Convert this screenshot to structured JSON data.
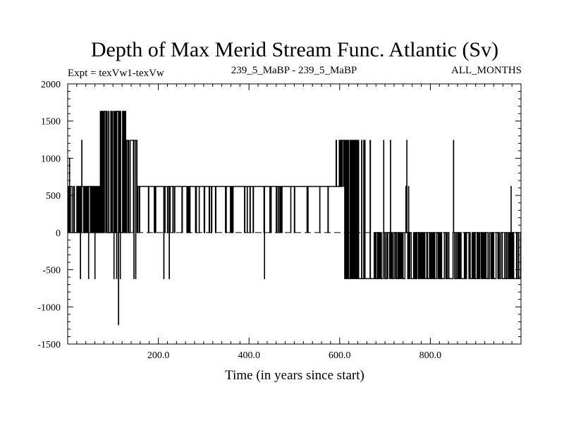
{
  "chart_data": {
    "type": "line",
    "title": "Depth of Max Merid Stream Func. Atlantic (Sv)",
    "subtitle_left": "Expt = texVw1-texVw",
    "subtitle_center": "239_5_MaBP - 239_5_MaBP",
    "subtitle_right": "ALL_MONTHS",
    "xlabel": "Time (in years since start)",
    "ylabel": "",
    "xlim": [
      0,
      1000
    ],
    "ylim": [
      -1500,
      2000
    ],
    "x_ticks": [
      200,
      400,
      600,
      800
    ],
    "x_tick_labels": [
      "200.0",
      "400.0",
      "600.0",
      "800.0"
    ],
    "y_ticks": [
      -1500,
      -1000,
      -500,
      0,
      500,
      1000,
      1500,
      2000
    ],
    "y_tick_labels": [
      "-1500",
      "-1000",
      "-500",
      "0",
      "500",
      "1000",
      "1500",
      "2000"
    ],
    "zero_line": "dashed",
    "levels": {
      "base": 620,
      "high": 1240,
      "peak": 1630,
      "low": -620,
      "zero": 0,
      "min": -1240
    },
    "segments": [
      {
        "x_start": 0,
        "x_end": 40,
        "level": 620,
        "density": 0.5,
        "alt_level": 0,
        "spikes": [
          [
            4,
            1000
          ],
          [
            28,
            -620
          ],
          [
            31,
            1240
          ]
        ]
      },
      {
        "x_start": 40,
        "x_end": 70,
        "level": 620,
        "density": 0.4,
        "alt_level": 0,
        "spikes": [
          [
            46,
            -620
          ],
          [
            60,
            -620
          ],
          [
            70,
            1240
          ]
        ]
      },
      {
        "x_start": 70,
        "x_end": 130,
        "level": 1630,
        "density": 0.55,
        "alt_level": 0,
        "spikes": [
          [
            102,
            -620
          ],
          [
            108,
            -620
          ],
          [
            112,
            -1240
          ],
          [
            116,
            -620
          ]
        ]
      },
      {
        "x_start": 130,
        "x_end": 155,
        "level": 1240,
        "density": 0.5,
        "alt_level": 0,
        "spikes": [
          [
            146,
            -620
          ],
          [
            150,
            -620
          ]
        ]
      },
      {
        "x_start": 155,
        "x_end": 590,
        "level": 620,
        "density": 0.08,
        "alt_level": 0,
        "spikes": [
          [
            194,
            0
          ],
          [
            212,
            -620
          ],
          [
            224,
            -620
          ],
          [
            236,
            0
          ],
          [
            290,
            0
          ],
          [
            302,
            0
          ],
          [
            348,
            0
          ],
          [
            362,
            0
          ],
          [
            396,
            0
          ],
          [
            434,
            -620
          ],
          [
            470,
            0
          ],
          [
            492,
            0
          ],
          [
            530,
            0
          ],
          [
            556,
            0
          ]
        ]
      },
      {
        "x_start": 590,
        "x_end": 610,
        "level": 620,
        "density": 0.6,
        "alt_level": 1240,
        "spikes": []
      },
      {
        "x_start": 610,
        "x_end": 670,
        "level": 1240,
        "density": 0.6,
        "alt_level": -620,
        "spikes": [
          [
            625,
            -620
          ],
          [
            633,
            -620
          ],
          [
            648,
            -620
          ]
        ]
      },
      {
        "x_start": 670,
        "x_end": 1000,
        "level": 0,
        "density": 0.55,
        "alt_level": -620,
        "spikes": [
          [
            697,
            1240
          ],
          [
            712,
            620
          ],
          [
            712,
            1240
          ],
          [
            746,
            620
          ],
          [
            748,
            1240
          ],
          [
            752,
            620
          ],
          [
            851,
            1240
          ],
          [
            978,
            620
          ]
        ]
      }
    ]
  }
}
